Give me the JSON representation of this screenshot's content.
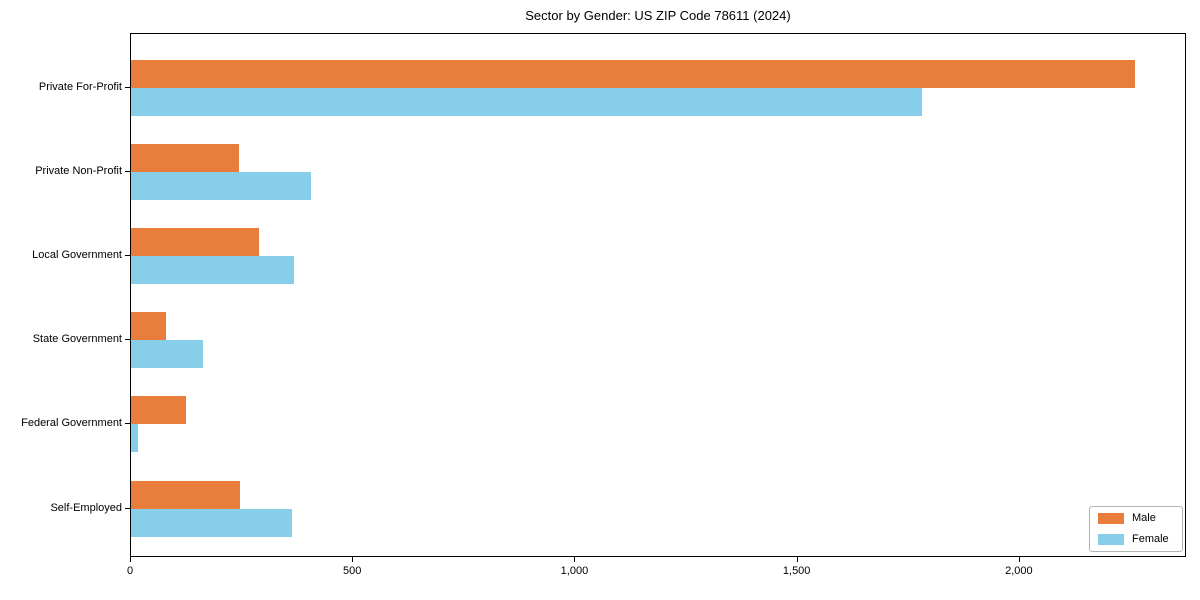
{
  "chart_data": {
    "type": "bar",
    "orientation": "horizontal",
    "title": "Sector by Gender: US ZIP Code 78611 (2024)",
    "categories": [
      "Private For-Profit",
      "Private Non-Profit",
      "Local Government",
      "State Government",
      "Federal Government",
      "Self-Employed"
    ],
    "series": [
      {
        "name": "Male",
        "color": "#e87d3c",
        "values": [
          2260,
          243,
          288,
          79,
          124,
          245
        ]
      },
      {
        "name": "Female",
        "color": "#87ceeb",
        "values": [
          1780,
          405,
          367,
          162,
          16,
          363
        ]
      }
    ],
    "xlabel": "",
    "ylabel": "",
    "xlim": [
      0,
      2376
    ],
    "xticks": [
      0,
      500,
      1000,
      1500,
      2000
    ],
    "xtick_labels": [
      "0",
      "500",
      "1,000",
      "1,500",
      "2,000"
    ],
    "grid": false,
    "legend_position": "lower right",
    "plot_border_color": "#000000",
    "background_color": "#ffffff"
  }
}
